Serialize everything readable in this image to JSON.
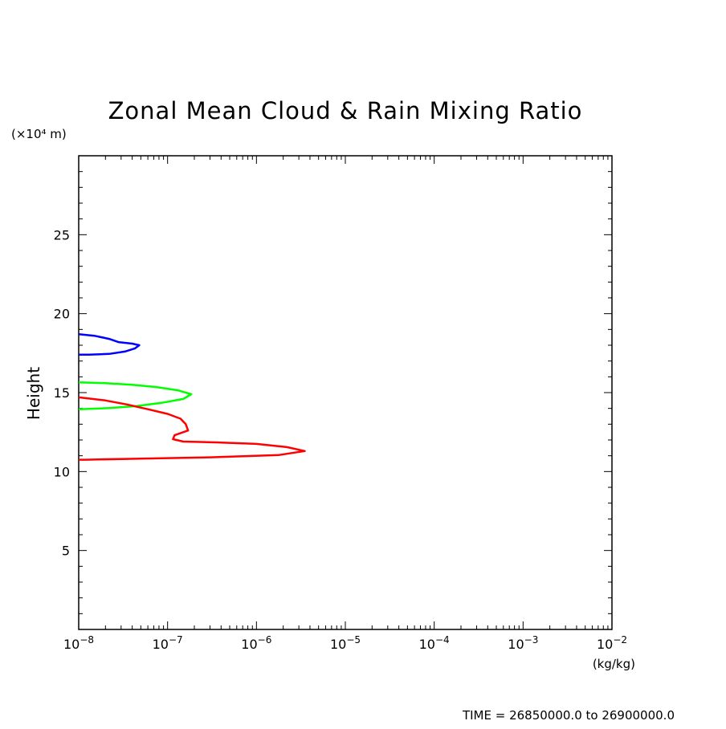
{
  "chart_data": {
    "type": "line",
    "title": "Zonal Mean Cloud & Rain Mixing Ratio",
    "ylabel": "Height",
    "y_unit": "(×10⁴ m)",
    "x_unit": "(kg/kg)",
    "x_scale": "log",
    "xlim": [
      1e-08,
      0.01
    ],
    "ylim": [
      0,
      30
    ],
    "x_ticks": [
      1e-08,
      1e-07,
      1e-06,
      1e-05,
      0.0001,
      0.001,
      0.01
    ],
    "x_tick_labels": [
      {
        "base": "10",
        "exp": "−8"
      },
      {
        "base": "10",
        "exp": "−7"
      },
      {
        "base": "10",
        "exp": "−6"
      },
      {
        "base": "10",
        "exp": "−5"
      },
      {
        "base": "10",
        "exp": "−4"
      },
      {
        "base": "10",
        "exp": "−3"
      },
      {
        "base": "10",
        "exp": "−2"
      }
    ],
    "y_ticks": [
      5,
      10,
      15,
      20,
      25
    ],
    "y_tick_labels": [
      "5",
      "10",
      "15",
      "20",
      "25"
    ],
    "grid": false,
    "series": [
      {
        "color": "#0000ff",
        "points": [
          [
            1e-08,
            18.7
          ],
          [
            1.5e-08,
            18.6
          ],
          [
            2.2e-08,
            18.4
          ],
          [
            2.8e-08,
            18.2
          ],
          [
            4e-08,
            18.1
          ],
          [
            4.8e-08,
            18.0
          ],
          [
            4.3e-08,
            17.8
          ],
          [
            3.3e-08,
            17.6
          ],
          [
            2.2e-08,
            17.45
          ],
          [
            1.3e-08,
            17.4
          ],
          [
            1e-08,
            17.4
          ]
        ]
      },
      {
        "color": "#00ff00",
        "points": [
          [
            1e-08,
            15.65
          ],
          [
            2e-08,
            15.6
          ],
          [
            4e-08,
            15.5
          ],
          [
            7.5e-08,
            15.35
          ],
          [
            1.3e-07,
            15.15
          ],
          [
            1.85e-07,
            14.9
          ],
          [
            1.5e-07,
            14.6
          ],
          [
            8.5e-08,
            14.35
          ],
          [
            4.5e-08,
            14.15
          ],
          [
            2.2e-08,
            14.02
          ],
          [
            1e-08,
            13.95
          ]
        ]
      },
      {
        "color": "#ff0000",
        "points": [
          [
            1e-08,
            14.7
          ],
          [
            2e-08,
            14.5
          ],
          [
            3.5e-08,
            14.25
          ],
          [
            6e-08,
            13.95
          ],
          [
            1e-07,
            13.65
          ],
          [
            1.4e-07,
            13.35
          ],
          [
            1.6e-07,
            13.0
          ],
          [
            1.7e-07,
            12.6
          ],
          [
            1.2e-07,
            12.3
          ],
          [
            1.15e-07,
            12.05
          ],
          [
            1.5e-07,
            11.9
          ],
          [
            3.5e-07,
            11.85
          ],
          [
            1e-06,
            11.75
          ],
          [
            2.2e-06,
            11.55
          ],
          [
            3.5e-06,
            11.3
          ],
          [
            1.8e-06,
            11.05
          ],
          [
            3e-07,
            10.9
          ],
          [
            5e-08,
            10.82
          ],
          [
            1.2e-08,
            10.75
          ],
          [
            1e-08,
            10.75
          ]
        ]
      }
    ]
  },
  "footer": {
    "time_range": "TIME = 26850000.0 to 26900000.0"
  }
}
